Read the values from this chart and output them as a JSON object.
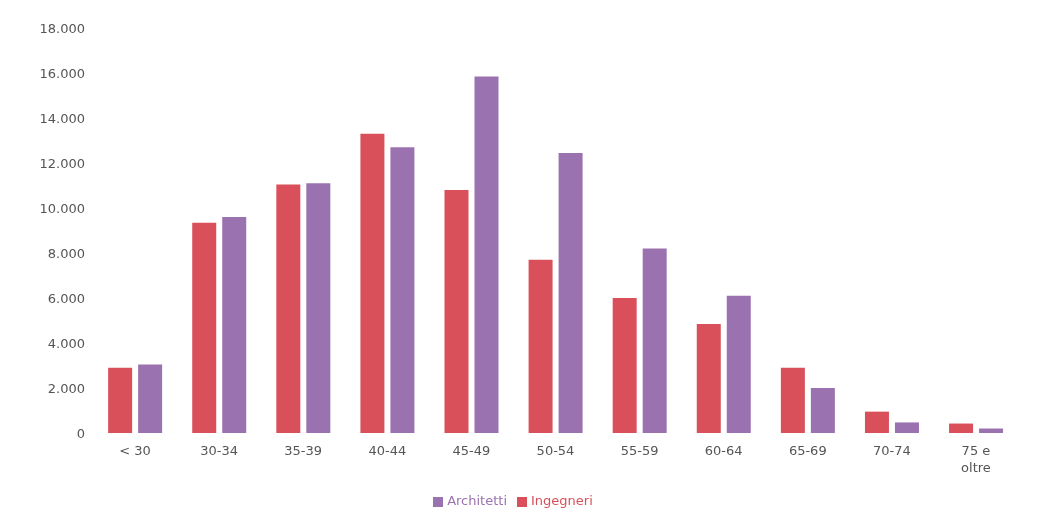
{
  "chart_data": {
    "type": "bar",
    "categories": [
      "< 30",
      "30-34",
      "35-39",
      "40-44",
      "45-49",
      "50-54",
      "55-59",
      "60-64",
      "65-69",
      "70-74",
      "75 e oltre"
    ],
    "series": [
      {
        "name": "Ingegneri",
        "color": "#d9505a",
        "values": [
          2900,
          9350,
          11050,
          13300,
          10800,
          7700,
          6000,
          4850,
          2900,
          950,
          420
        ]
      },
      {
        "name": "Architetti",
        "color": "#9b72b0",
        "values": [
          3050,
          9600,
          11100,
          12700,
          15850,
          12450,
          8200,
          6100,
          2000,
          470,
          200
        ]
      }
    ],
    "ylim": [
      0,
      18000
    ],
    "yticks": [
      {
        "value": 0,
        "label": "0"
      },
      {
        "value": 2000,
        "label": "2.000"
      },
      {
        "value": 4000,
        "label": "4.000"
      },
      {
        "value": 6000,
        "label": "6.000"
      },
      {
        "value": 8000,
        "label": "8.000"
      },
      {
        "value": 10000,
        "label": "10.000"
      },
      {
        "value": 12000,
        "label": "12.000"
      },
      {
        "value": 14000,
        "label": "14.000"
      },
      {
        "value": 16000,
        "label": "16.000"
      },
      {
        "value": 18000,
        "label": "18.000"
      }
    ],
    "grid": false,
    "legend": "bottom"
  }
}
